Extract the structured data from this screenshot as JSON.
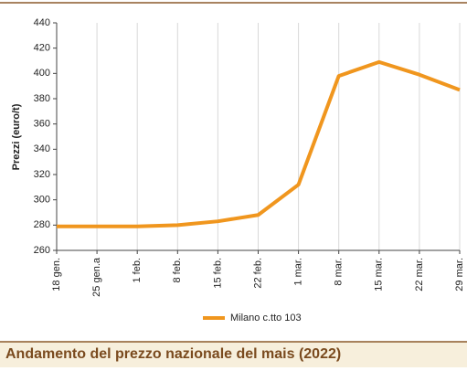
{
  "chart_data": {
    "type": "line",
    "title": "Andamento del prezzo nazionale del mais (2022)",
    "y_label": "Prezzi (euro/t)",
    "categories": [
      "18 gen.",
      "25 gen.a",
      "1 feb.",
      "8 feb.",
      "15 feb.",
      "22 feb.",
      "1 mar.",
      "8 mar.",
      "15 mar.",
      "22 mar.",
      "29 mar."
    ],
    "series": [
      {
        "name": "Milano  c.tto 103",
        "color": "#f0961e",
        "values": [
          279,
          279,
          279,
          280,
          283,
          288,
          312,
          398,
          409,
          399,
          387
        ]
      }
    ],
    "ylim": [
      260,
      440
    ],
    "yticks": [
      260,
      280,
      300,
      320,
      340,
      360,
      380,
      400,
      420,
      440
    ],
    "grid": true
  }
}
